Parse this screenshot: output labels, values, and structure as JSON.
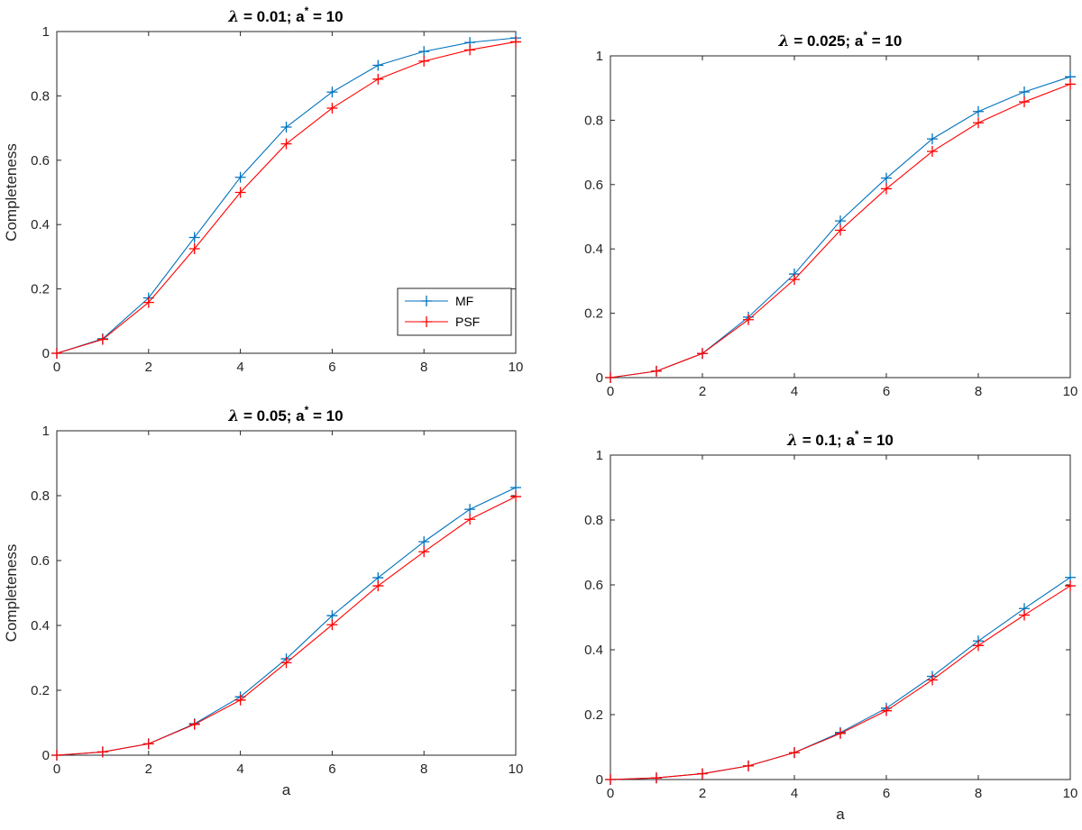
{
  "chart_data": [
    {
      "type": "line",
      "title_parts": [
        "λ",
        " = 0.01;  a",
        "*",
        " = 10"
      ],
      "xlabel": "",
      "ylabel": "Completeness",
      "xlim": [
        0,
        10
      ],
      "ylim": [
        0,
        1
      ],
      "xticks": [
        "0",
        "2",
        "4",
        "6",
        "8",
        "10"
      ],
      "yticks": [
        "0",
        "0.2",
        "0.4",
        "0.6",
        "0.8",
        "1"
      ],
      "x": [
        0,
        1,
        2,
        3,
        4,
        5,
        6,
        7,
        8,
        9,
        10
      ],
      "legend": {
        "placement": "bottom-right",
        "entries": [
          "MF",
          "PSF"
        ]
      },
      "series": [
        {
          "name": "MF",
          "color": "#0072BD",
          "marker": "plus",
          "values": [
            0,
            0.045,
            0.172,
            0.36,
            0.547,
            0.703,
            0.812,
            0.895,
            0.938,
            0.966,
            0.98
          ]
        },
        {
          "name": "PSF",
          "color": "#FF0000",
          "marker": "plus",
          "values": [
            0,
            0.043,
            0.158,
            0.325,
            0.5,
            0.651,
            0.762,
            0.852,
            0.908,
            0.943,
            0.968
          ]
        }
      ]
    },
    {
      "type": "line",
      "title_parts": [
        "λ",
        " = 0.025;  a",
        "*",
        " = 10"
      ],
      "xlabel": "",
      "ylabel": "",
      "xlim": [
        0,
        10
      ],
      "ylim": [
        0,
        1
      ],
      "xticks": [
        "0",
        "2",
        "4",
        "6",
        "8",
        "10"
      ],
      "yticks": [
        "0",
        "0.2",
        "0.4",
        "0.6",
        "0.8",
        "1"
      ],
      "x": [
        0,
        1,
        2,
        3,
        4,
        5,
        6,
        7,
        8,
        9,
        10
      ],
      "series": [
        {
          "name": "MF",
          "color": "#0072BD",
          "marker": "plus",
          "values": [
            0,
            0.02,
            0.075,
            0.188,
            0.322,
            0.487,
            0.62,
            0.742,
            0.827,
            0.888,
            0.935
          ]
        },
        {
          "name": "PSF",
          "color": "#FF0000",
          "marker": "plus",
          "values": [
            0,
            0.02,
            0.075,
            0.18,
            0.305,
            0.458,
            0.587,
            0.703,
            0.792,
            0.857,
            0.912
          ]
        }
      ]
    },
    {
      "type": "line",
      "title_parts": [
        "λ",
        " = 0.05;  a",
        "*",
        " = 10"
      ],
      "xlabel": "a",
      "ylabel": "Completeness",
      "xlim": [
        0,
        10
      ],
      "ylim": [
        0,
        1
      ],
      "xticks": [
        "0",
        "2",
        "4",
        "6",
        "8",
        "10"
      ],
      "yticks": [
        "0",
        "0.2",
        "0.4",
        "0.6",
        "0.8",
        "1"
      ],
      "x": [
        0,
        1,
        2,
        3,
        4,
        5,
        6,
        7,
        8,
        9,
        10
      ],
      "series": [
        {
          "name": "MF",
          "color": "#0072BD",
          "marker": "plus",
          "values": [
            0,
            0.01,
            0.035,
            0.097,
            0.18,
            0.297,
            0.43,
            0.547,
            0.658,
            0.758,
            0.825
          ]
        },
        {
          "name": "PSF",
          "color": "#FF0000",
          "marker": "plus",
          "values": [
            0,
            0.01,
            0.035,
            0.095,
            0.17,
            0.285,
            0.402,
            0.522,
            0.627,
            0.727,
            0.797
          ]
        }
      ]
    },
    {
      "type": "line",
      "title_parts": [
        "λ",
        " = 0.1;  a",
        "*",
        " = 10"
      ],
      "xlabel": "a",
      "ylabel": "",
      "xlim": [
        0,
        10
      ],
      "ylim": [
        0,
        1
      ],
      "xticks": [
        "0",
        "2",
        "4",
        "6",
        "8",
        "10"
      ],
      "yticks": [
        "0",
        "0.2",
        "0.4",
        "0.6",
        "0.8",
        "1"
      ],
      "x": [
        0,
        1,
        2,
        3,
        4,
        5,
        6,
        7,
        8,
        9,
        10
      ],
      "series": [
        {
          "name": "MF",
          "color": "#0072BD",
          "marker": "plus",
          "values": [
            0,
            0.005,
            0.018,
            0.042,
            0.083,
            0.145,
            0.22,
            0.318,
            0.427,
            0.527,
            0.623
          ]
        },
        {
          "name": "PSF",
          "color": "#FF0000",
          "marker": "plus",
          "values": [
            0,
            0.005,
            0.018,
            0.042,
            0.083,
            0.142,
            0.212,
            0.307,
            0.413,
            0.507,
            0.597
          ]
        }
      ]
    }
  ]
}
